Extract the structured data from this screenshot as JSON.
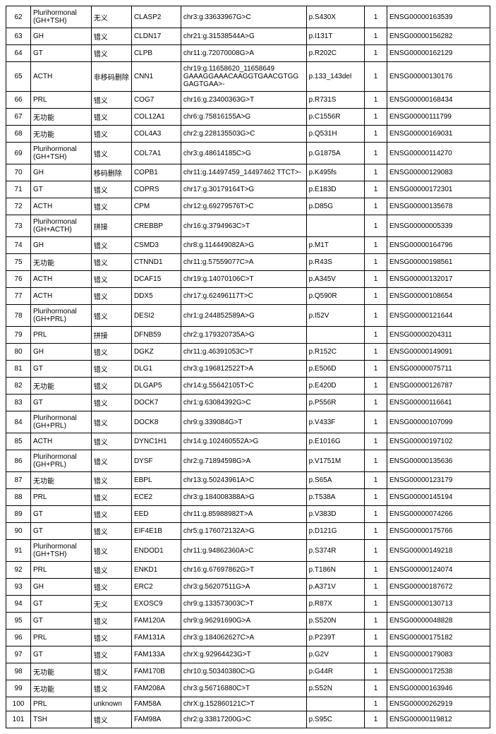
{
  "columns": [
    "c0",
    "c1",
    "c2",
    "c3",
    "c4",
    "c5",
    "c6",
    "c7"
  ],
  "rows": [
    [
      "62",
      "Plurihormonal (GH+TSH)",
      "无义",
      "CLASP2",
      "chr3:g.33633967G>C",
      "p.S430X",
      "1",
      "ENSG00000163539"
    ],
    [
      "63",
      "GH",
      "错义",
      "CLDN17",
      "chr21:g.31538544A>G",
      "p.I131T",
      "1",
      "ENSG00000156282"
    ],
    [
      "64",
      "GT",
      "错义",
      "CLPB",
      "chr11:g.72070008G>A",
      "p.R202C",
      "1",
      "ENSG00000162129"
    ],
    [
      "65",
      "ACTH",
      "非移码删除",
      "CNN1",
      "chr19:g.11658620_11658649 GAAAGGAAACAAGGTGAACGTGG GAGTGAA>-",
      "p.133_143del",
      "1",
      "ENSG00000130176"
    ],
    [
      "66",
      "PRL",
      "错义",
      "COG7",
      "chr16:g.23400363G>T",
      "p.R731S",
      "1",
      "ENSG00000168434"
    ],
    [
      "67",
      "无功能",
      "错义",
      "COL12A1",
      "chr6:g.75816155A>G",
      "p.C1556R",
      "1",
      "ENSG00000111799"
    ],
    [
      "68",
      "无功能",
      "错义",
      "COL4A3",
      "chr2:g.228135503G>C",
      "p.Q531H",
      "1",
      "ENSG00000169031"
    ],
    [
      "69",
      "Plurihormonal (GH+TSH)",
      "错义",
      "COL7A1",
      "chr3:g.48614185C>G",
      "p.G1875A",
      "1",
      "ENSG00000114270"
    ],
    [
      "70",
      "GH",
      "移码删除",
      "COPB1",
      "chr11:g.14497459_14497462 TTCT>-",
      "p.K495fs",
      "1",
      "ENSG00000129083"
    ],
    [
      "71",
      "GT",
      "错义",
      "COPRS",
      "chr17:g.30179164T>G",
      "p.E183D",
      "1",
      "ENSG00000172301"
    ],
    [
      "72",
      "ACTH",
      "错义",
      "CPM",
      "chr12:g.69279576T>C",
      "p.D85G",
      "1",
      "ENSG00000135678"
    ],
    [
      "73",
      "Plurihormonal (GH+ACTH)",
      "拼接",
      "CREBBP",
      "chr16:g.3794963C>T",
      "",
      "1",
      "ENSG00000005339"
    ],
    [
      "74",
      "GH",
      "错义",
      "CSMD3",
      "chr8:g.114449082A>G",
      "p.M1T",
      "1",
      "ENSG00000164796"
    ],
    [
      "75",
      "无功能",
      "错义",
      "CTNND1",
      "chr11:g.57559077C>A",
      "p.R43S",
      "1",
      "ENSG00000198561"
    ],
    [
      "76",
      "ACTH",
      "错义",
      "DCAF15",
      "chr19:g.14070106C>T",
      "p.A345V",
      "1",
      "ENSG00000132017"
    ],
    [
      "77",
      "ACTH",
      "错义",
      "DDX5",
      "chr17:g.62496117T>C",
      "p.Q590R",
      "1",
      "ENSG00000108654"
    ],
    [
      "78",
      "Plurihormonal (GH+PRL)",
      "错义",
      "DESI2",
      "chr1:g.244852589A>G",
      "p.I52V",
      "1",
      "ENSG00000121644"
    ],
    [
      "79",
      "PRL",
      "拼接",
      "DFNB59",
      "chr2:g.179320735A>G",
      "",
      "1",
      "ENSG00000204311"
    ],
    [
      "80",
      "GH",
      "错义",
      "DGKZ",
      "chr11:g.46391053C>T",
      "p.R152C",
      "1",
      "ENSG00000149091"
    ],
    [
      "81",
      "GT",
      "错义",
      "DLG1",
      "chr3:g.196812522T>A",
      "p.E506D",
      "1",
      "ENSG00000075711"
    ],
    [
      "82",
      "无功能",
      "错义",
      "DLGAP5",
      "chr14:g.55642105T>C",
      "p.E420D",
      "1",
      "ENSG00000126787"
    ],
    [
      "83",
      "GT",
      "错义",
      "DOCK7",
      "chr1:g.63084392G>C",
      "p.P556R",
      "1",
      "ENSG00000116641"
    ],
    [
      "84",
      "Plurihormonal (GH+PRL)",
      "错义",
      "DOCK8",
      "chr9:g.339084G>T",
      "p.V433F",
      "1",
      "ENSG00000107099"
    ],
    [
      "85",
      "ACTH",
      "错义",
      "DYNC1H1",
      "chr14:g.102460552A>G",
      "p.E1016G",
      "1",
      "ENSG00000197102"
    ],
    [
      "86",
      "Plurihormonal (GH+PRL)",
      "错义",
      "DYSF",
      "chr2:g.71894598G>A",
      "p.V1751M",
      "1",
      "ENSG00000135636"
    ],
    [
      "87",
      "无功能",
      "错义",
      "EBPL",
      "chr13:g.50243961A>C",
      "p.S65A",
      "1",
      "ENSG00000123179"
    ],
    [
      "88",
      "PRL",
      "错义",
      "ECE2",
      "chr3:g.184008388A>G",
      "p.T538A",
      "1",
      "ENSG00000145194"
    ],
    [
      "89",
      "GT",
      "错义",
      "EED",
      "chr11:g.85988982T>A",
      "p.V383D",
      "1",
      "ENSG00000074266"
    ],
    [
      "90",
      "GT",
      "错义",
      "EIF4E1B",
      "chr5:g.176072132A>G",
      "p.D121G",
      "1",
      "ENSG00000175766"
    ],
    [
      "91",
      "Plurihormonal (GH+TSH)",
      "错义",
      "ENDOD1",
      "chr11:g.94862360A>C",
      "p.S374R",
      "1",
      "ENSG00000149218"
    ],
    [
      "92",
      "PRL",
      "错义",
      "ENKD1",
      "chr16:g.67697862G>T",
      "p.T186N",
      "1",
      "ENSG00000124074"
    ],
    [
      "93",
      "GH",
      "错义",
      "ERC2",
      "chr3:g.56207511G>A",
      "p.A371V",
      "1",
      "ENSG00000187672"
    ],
    [
      "94",
      "GT",
      "无义",
      "EXOSC9",
      "chr9:g.133573003C>T",
      "p.R87X",
      "1",
      "ENSG00000130713"
    ],
    [
      "95",
      "GT",
      "错义",
      "FAM120A",
      "chr9:g.96291690G>A",
      "p.S520N",
      "1",
      "ENSG00000048828"
    ],
    [
      "96",
      "PRL",
      "错义",
      "FAM131A",
      "chr3:g.184062627C>A",
      "p.P239T",
      "1",
      "ENSG00000175182"
    ],
    [
      "97",
      "GT",
      "错义",
      "FAM133A",
      "chrX:g.92964423G>T",
      "p.G2V",
      "1",
      "ENSG00000179083"
    ],
    [
      "98",
      "无功能",
      "错义",
      "FAM170B",
      "chr10:g.50340380C>G",
      "p.G44R",
      "1",
      "ENSG00000172538"
    ],
    [
      "99",
      "无功能",
      "错义",
      "FAM208A",
      "chr3:g.56716880C>T",
      "p.S52N",
      "1",
      "ENSG00000163946"
    ],
    [
      "100",
      "PRL",
      "unknown",
      "FAM58A",
      "chrX:g.152860121C>T",
      "",
      "1",
      "ENSG00000262919"
    ],
    [
      "101",
      "TSH",
      "错义",
      "FAM98A",
      "chr2:g.33817200G>C",
      "p.S95C",
      "1",
      "ENSG00000119812"
    ]
  ]
}
